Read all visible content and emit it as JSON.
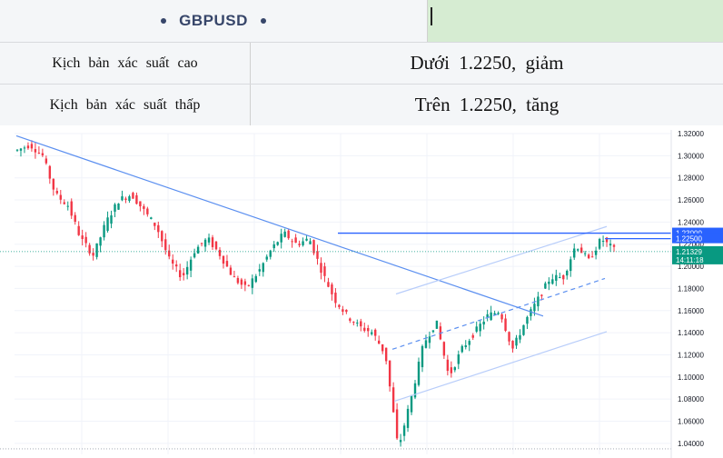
{
  "header": {
    "title": "GBPUSD"
  },
  "rows": [
    {
      "label": "Kịch bản xác suất cao",
      "value": "Dưới 1.2250, giảm"
    },
    {
      "label": "Kịch bản xác suất thấp",
      "value": "Trên 1.2250, tăng"
    }
  ],
  "chart_data": {
    "type": "candlestick",
    "ylim": [
      1.03,
      1.32
    ],
    "yticks": [
      "1.32000",
      "1.30000",
      "1.28000",
      "1.26000",
      "1.24000",
      "1.22000",
      "1.20000",
      "1.18000",
      "1.16000",
      "1.14000",
      "1.12000",
      "1.10000",
      "1.08000",
      "1.06000",
      "1.04000"
    ],
    "price_labels": [
      {
        "label": "1.23000",
        "value": 1.23,
        "color": "#2962ff"
      },
      {
        "label": "1.22500",
        "value": 1.225,
        "color": "#2962ff"
      },
      {
        "label": "1.21329",
        "sublabel": "14:11:18",
        "value": 1.21329,
        "color": "#089981"
      }
    ],
    "horizontal_levels": [
      1.23,
      1.225
    ],
    "path": [
      1.305,
      1.31,
      1.3,
      1.265,
      1.255,
      1.225,
      1.21,
      1.24,
      1.26,
      1.265,
      1.25,
      1.235,
      1.205,
      1.19,
      1.215,
      1.225,
      1.21,
      1.19,
      1.18,
      1.195,
      1.215,
      1.23,
      1.22,
      1.225,
      1.195,
      1.17,
      1.155,
      1.145,
      1.14,
      1.12,
      1.035,
      1.08,
      1.13,
      1.15,
      1.1,
      1.125,
      1.14,
      1.155,
      1.16,
      1.125,
      1.15,
      1.17,
      1.19,
      1.19,
      1.22,
      1.205,
      1.225,
      1.215
    ],
    "bull_color": "#089981",
    "bear_color": "#f23645",
    "line_color": "#5b8ff0"
  }
}
